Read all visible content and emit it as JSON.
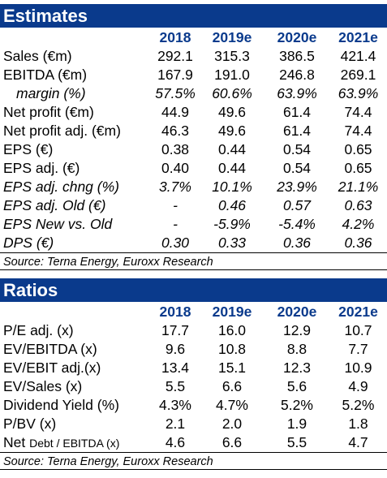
{
  "estimates": {
    "title": "Estimates",
    "columns": [
      "2018",
      "2019e",
      "2020e",
      "2021e"
    ],
    "rows": [
      {
        "label": "Sales (€m)",
        "values": [
          "292.1",
          "315.3",
          "386.5",
          "421.4"
        ],
        "style": "normal"
      },
      {
        "label": "EBITDA (€m)",
        "values": [
          "167.9",
          "191.0",
          "246.8",
          "269.1"
        ],
        "style": "normal"
      },
      {
        "label": "margin (%)",
        "values": [
          "57.5%",
          "60.6%",
          "63.9%",
          "63.9%"
        ],
        "style": "italic-indent"
      },
      {
        "label": "Net profit (€m)",
        "values": [
          "44.9",
          "49.6",
          "61.4",
          "74.4"
        ],
        "style": "normal"
      },
      {
        "label": "Net profit adj. (€m)",
        "values": [
          "46.3",
          "49.6",
          "61.4",
          "74.4"
        ],
        "style": "normal"
      },
      {
        "label": "EPS (€)",
        "values": [
          "0.38",
          "0.44",
          "0.54",
          "0.65"
        ],
        "style": "normal"
      },
      {
        "label": "EPS adj. (€)",
        "values": [
          "0.40",
          "0.44",
          "0.54",
          "0.65"
        ],
        "style": "normal"
      },
      {
        "label": "EPS adj. chng (%)",
        "values": [
          "3.7%",
          "10.1%",
          "23.9%",
          "21.1%"
        ],
        "style": "italic"
      },
      {
        "label": "EPS adj. Old (€)",
        "values": [
          "-",
          "0.46",
          "0.57",
          "0.63"
        ],
        "style": "italic"
      },
      {
        "label": "EPS New vs. Old",
        "values": [
          "-",
          "-5.9%",
          "-5.4%",
          "4.2%"
        ],
        "style": "italic"
      },
      {
        "label": "DPS (€)",
        "values": [
          "0.30",
          "0.33",
          "0.36",
          "0.36"
        ],
        "style": "italic"
      }
    ],
    "source": "Source: Terna Energy, Euroxx Research"
  },
  "ratios": {
    "title": "Ratios",
    "columns": [
      "2018",
      "2019e",
      "2020e",
      "2021e"
    ],
    "rows": [
      {
        "label": "P/E adj. (x)",
        "values": [
          "17.7",
          "16.0",
          "12.9",
          "10.7"
        ]
      },
      {
        "label": "EV/EBITDA (x)",
        "values": [
          "9.6",
          "10.8",
          "8.8",
          "7.7"
        ]
      },
      {
        "label": "EV/EBIT adj.(x)",
        "values": [
          "13.4",
          "15.1",
          "12.3",
          "10.9"
        ]
      },
      {
        "label": "EV/Sales (x)",
        "values": [
          "5.5",
          "6.6",
          "5.6",
          "4.9"
        ]
      },
      {
        "label": "Dividend Yield (%)",
        "values": [
          "4.3%",
          "4.7%",
          "5.2%",
          "5.2%"
        ]
      },
      {
        "label": "P/BV (x)",
        "values": [
          "2.1",
          "2.0",
          "1.9",
          "1.8"
        ]
      },
      {
        "label": "Net",
        "label_small": "Debt / EBITDA (x)",
        "values": [
          "4.6",
          "6.6",
          "5.5",
          "4.7"
        ]
      }
    ],
    "source": "Source: Terna Energy, Euroxx Research"
  },
  "colors": {
    "header_band": "#0a3a8c",
    "column_header_text": "#0a3a8c"
  }
}
